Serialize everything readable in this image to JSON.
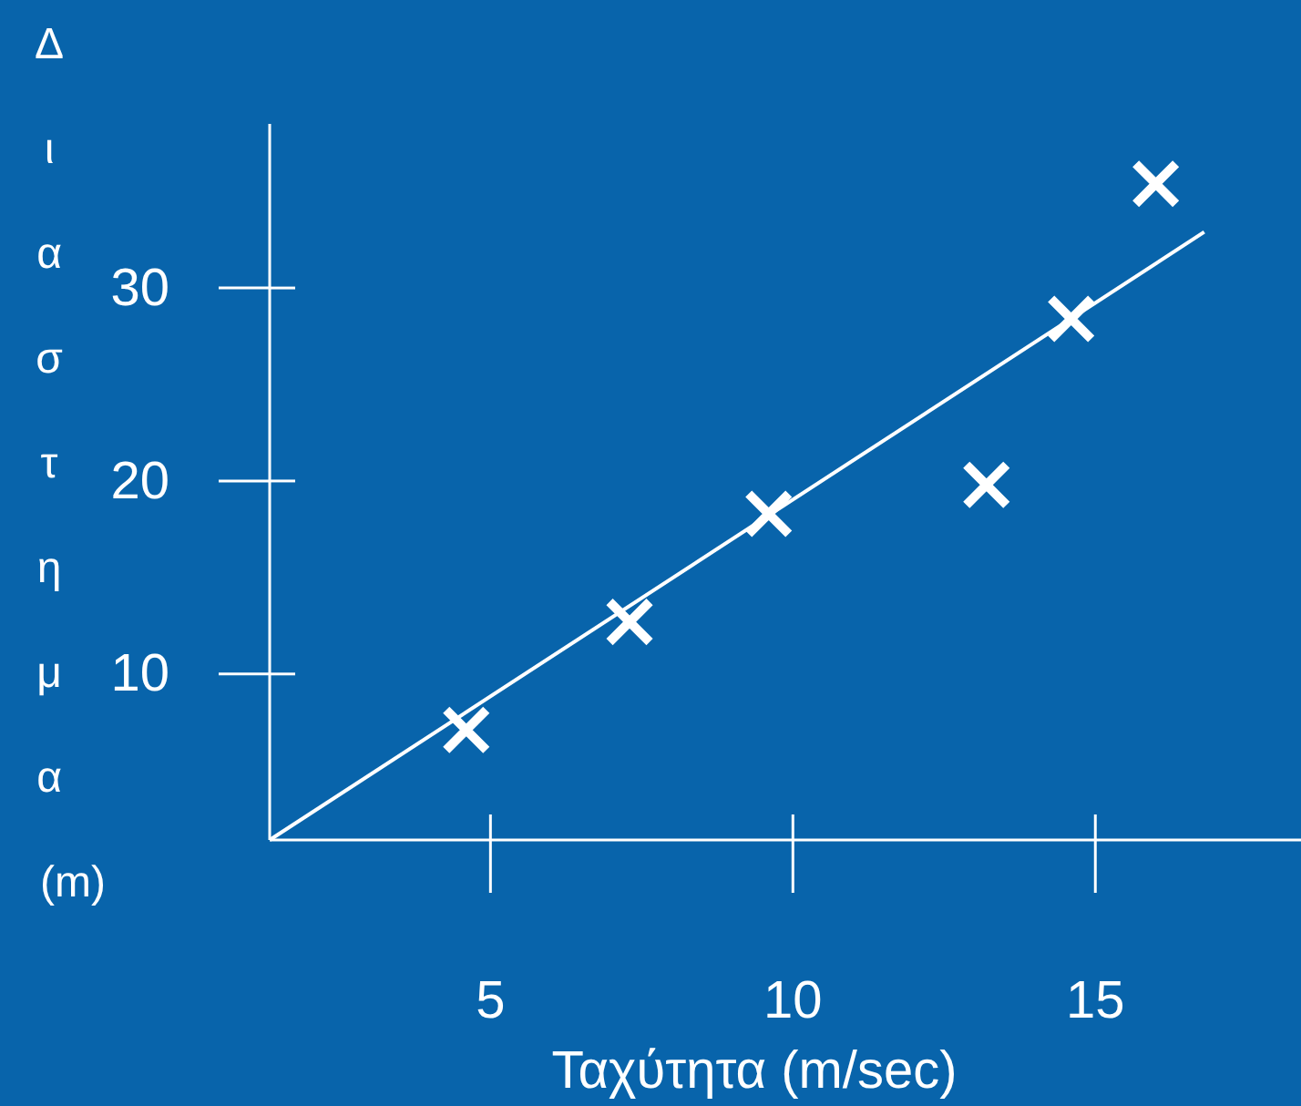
{
  "chart_data": {
    "type": "scatter",
    "xlabel": "Ταχύτητα (m/sec)",
    "ylabel": "Διαστημα (m)",
    "xlim": [
      1.35,
      18.4
    ],
    "ylim": [
      1.4,
      38.5
    ],
    "xticks": [
      5,
      10,
      15
    ],
    "yticks": [
      10,
      20,
      30
    ],
    "grid": false,
    "series": [
      {
        "color": "#ffffff",
        "marker": "cross",
        "x": [
          4.6,
          7.3,
          9.6,
          13.2,
          14.6,
          16.0
        ],
        "values": [
          7.1,
          12.7,
          18.3,
          19.8,
          28.4,
          35.4
        ]
      },
      {
        "type": "line",
        "marker": "none",
        "color": "#ffffff",
        "x": [
          1.35,
          16.8
        ],
        "values": [
          1.4,
          32.9
        ]
      }
    ]
  }
}
